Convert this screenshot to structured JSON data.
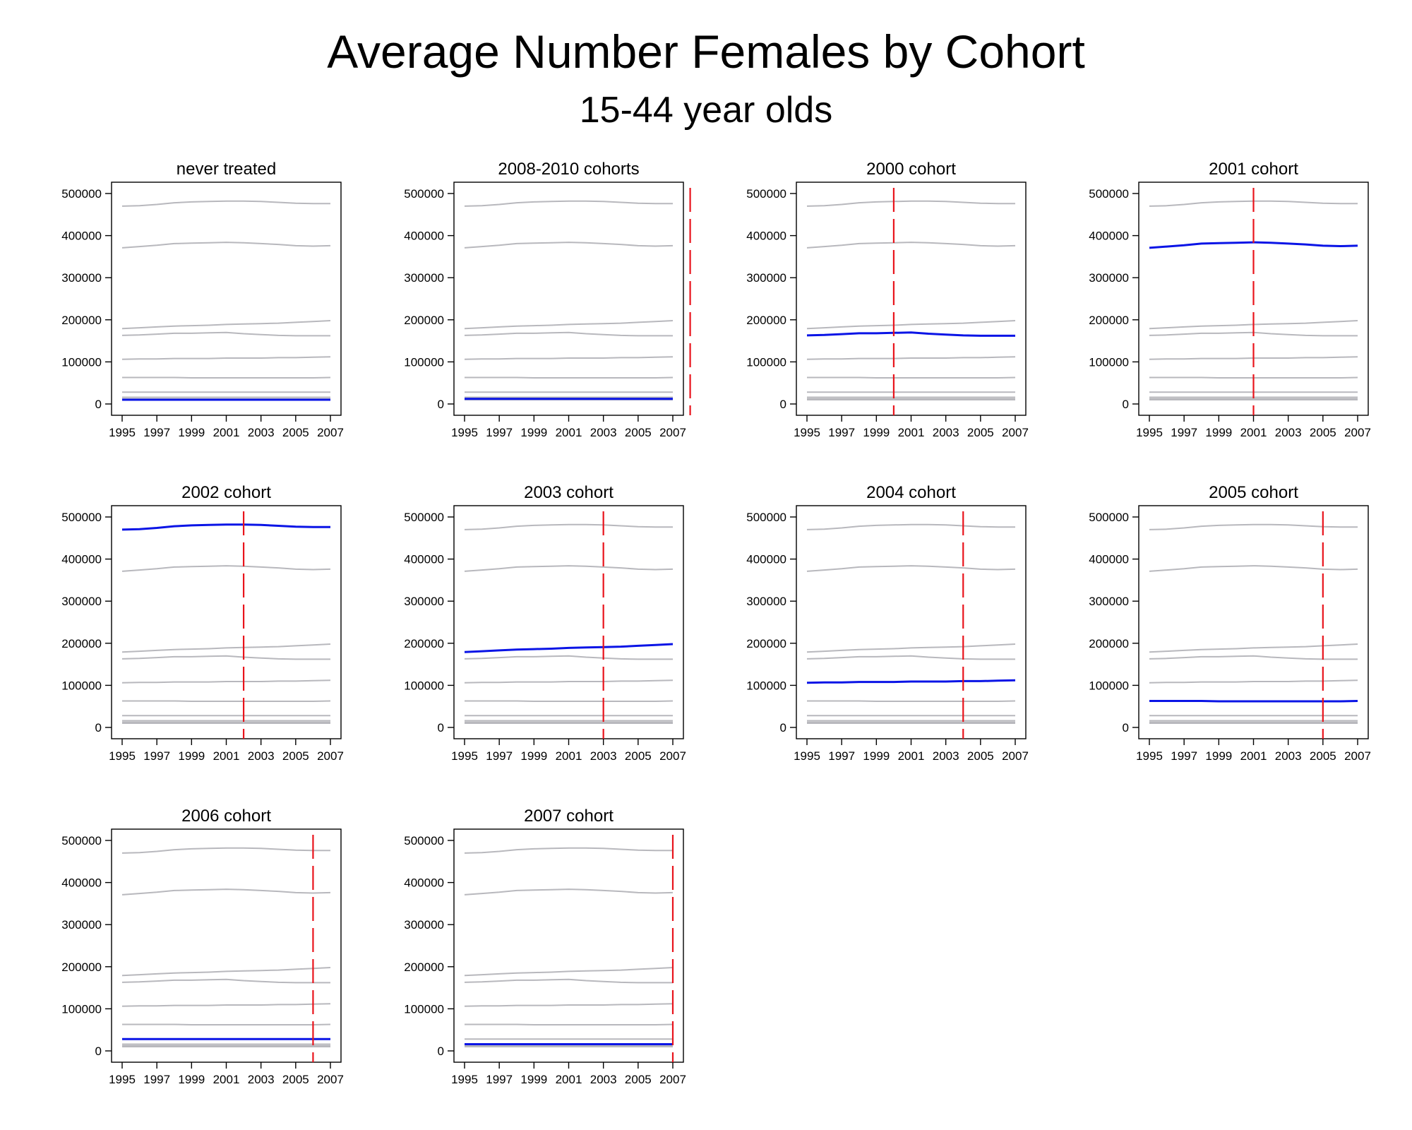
{
  "title": "Average Number Females by Cohort",
  "subtitle": "15-44 year olds",
  "colors": {
    "highlight": "#0a14e6",
    "background_series": "#b8b8bd",
    "treatment_line": "#e8141c",
    "axis": "#000000"
  },
  "chart_data": {
    "type": "line",
    "x": [
      1995,
      1996,
      1997,
      1998,
      1999,
      2000,
      2001,
      2002,
      2003,
      2004,
      2005,
      2006,
      2007
    ],
    "xticks": [
      "1995",
      "1997",
      "1999",
      "2001",
      "2003",
      "2005",
      "2007"
    ],
    "xlim": [
      1995,
      2007
    ],
    "yticks": [
      "0",
      "100000",
      "200000",
      "300000",
      "400000",
      "500000"
    ],
    "ylim": [
      0,
      500000
    ],
    "grid": false,
    "series": [
      {
        "values": [
          470000,
          471000,
          474000,
          478000,
          480000,
          481000,
          482000,
          482000,
          481000,
          479000,
          477000,
          476000,
          476000
        ]
      },
      {
        "values": [
          371000,
          374000,
          377000,
          381000,
          382000,
          383000,
          384000,
          383000,
          381000,
          379000,
          376000,
          375000,
          376000
        ]
      },
      {
        "values": [
          179000,
          181000,
          183000,
          185000,
          186000,
          187000,
          189000,
          190000,
          191000,
          192000,
          194000,
          196000,
          198000
        ]
      },
      {
        "values": [
          163000,
          164000,
          166000,
          168000,
          168000,
          169000,
          170000,
          167000,
          165000,
          163000,
          162000,
          162000,
          162000
        ]
      },
      {
        "values": [
          106000,
          107000,
          107000,
          108000,
          108000,
          108000,
          109000,
          109000,
          109000,
          110000,
          110000,
          111000,
          112000
        ]
      },
      {
        "values": [
          63000,
          63000,
          63000,
          63000,
          62000,
          62000,
          62000,
          62000,
          62000,
          62000,
          62000,
          62000,
          63000
        ]
      },
      {
        "values": [
          28000,
          28000,
          28000,
          28000,
          28000,
          28000,
          28000,
          28000,
          28000,
          28000,
          28000,
          28000,
          28000
        ]
      },
      {
        "values": [
          16000,
          16000,
          16000,
          16000,
          16000,
          16000,
          16000,
          16000,
          16000,
          16000,
          16000,
          16000,
          16000
        ]
      },
      {
        "values": [
          12000,
          12000,
          12000,
          12000,
          12000,
          12000,
          12000,
          12000,
          12000,
          12000,
          12000,
          12000,
          12000
        ]
      },
      {
        "values": [
          10000,
          10000,
          10000,
          10000,
          10000,
          10000,
          10000,
          10000,
          10000,
          10000,
          10000,
          10000,
          10000
        ]
      }
    ],
    "panels": [
      {
        "title": "never treated",
        "highlight": 9,
        "treatment_year": null
      },
      {
        "title": "2008-2010 cohorts",
        "highlight": 8,
        "treatment_year": 2008
      },
      {
        "title": "2000 cohort",
        "highlight": 3,
        "treatment_year": 2000
      },
      {
        "title": "2001 cohort",
        "highlight": 1,
        "treatment_year": 2001
      },
      {
        "title": "2002 cohort",
        "highlight": 0,
        "treatment_year": 2002
      },
      {
        "title": "2003 cohort",
        "highlight": 2,
        "treatment_year": 2003
      },
      {
        "title": "2004 cohort",
        "highlight": 4,
        "treatment_year": 2004
      },
      {
        "title": "2005 cohort",
        "highlight": 5,
        "treatment_year": 2005
      },
      {
        "title": "2006 cohort",
        "highlight": 6,
        "treatment_year": 2006
      },
      {
        "title": "2007 cohort",
        "highlight": 7,
        "treatment_year": 2007
      }
    ]
  }
}
